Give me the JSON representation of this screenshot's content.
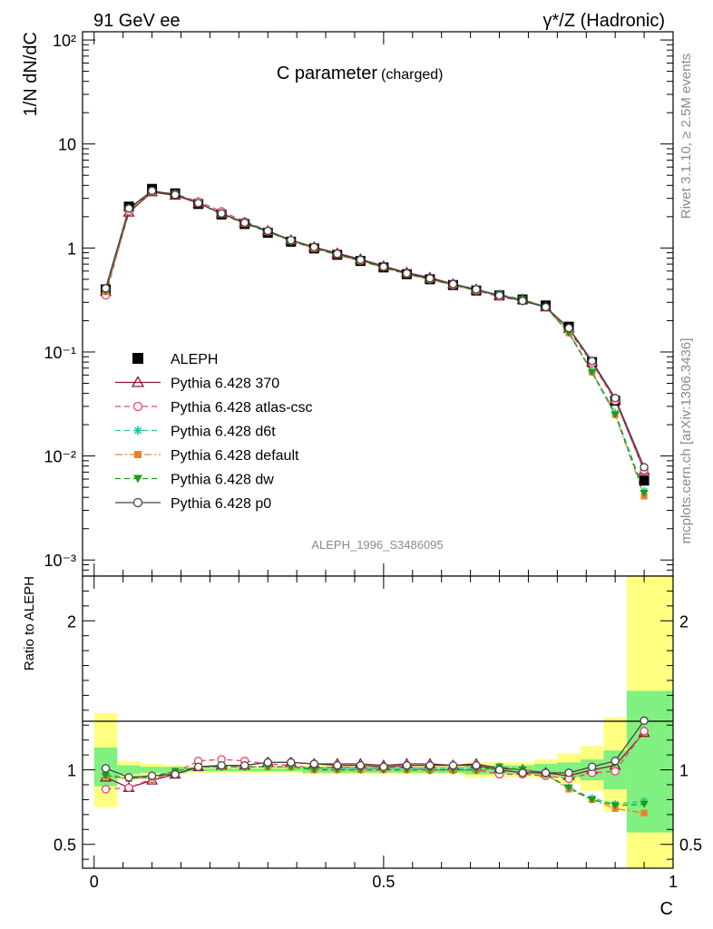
{
  "header": {
    "left": "91 GeV ee",
    "right": "γ*/Z (Hadronic)"
  },
  "side_text": {
    "top": "Rivet 3.1.10, ≥ 2.5M events",
    "bottom": "mcplots.cern.ch [arXiv:1306.3436]"
  },
  "chart_data": [
    {
      "type": "line",
      "panel": "main",
      "title": "C parameter",
      "title_suffix": "(charged)",
      "ylabel": "1/N dN/dC",
      "yscale": "log",
      "ylim": [
        0.0007,
        120
      ],
      "xlim": [
        -0.02,
        1.0
      ],
      "ytick_labels": [
        "10⁻³",
        "10⁻²",
        "10⁻¹",
        "1",
        "10",
        "10²"
      ],
      "watermark": "ALEPH_1996_S3486095",
      "legend_position": "center-left",
      "x": [
        0.02,
        0.06,
        0.1,
        0.14,
        0.18,
        0.22,
        0.26,
        0.3,
        0.34,
        0.38,
        0.42,
        0.46,
        0.5,
        0.54,
        0.58,
        0.62,
        0.66,
        0.7,
        0.74,
        0.78,
        0.82,
        0.86,
        0.9,
        0.95
      ],
      "series": [
        {
          "name": "ALEPH",
          "color": "#000000",
          "marker": "square",
          "dash": "none",
          "values": [
            0.4,
            2.5,
            3.7,
            3.35,
            2.65,
            2.1,
            1.7,
            1.4,
            1.15,
            0.99,
            0.86,
            0.75,
            0.65,
            0.56,
            0.5,
            0.44,
            0.39,
            0.35,
            0.32,
            0.28,
            0.175,
            0.08,
            0.034,
            0.0058
          ]
        },
        {
          "name": "Pythia 6.428 370",
          "color": "#8b1a2b",
          "marker": "triangle-open",
          "dash": "solid",
          "values": [
            0.38,
            2.2,
            3.45,
            3.2,
            2.7,
            2.15,
            1.75,
            1.46,
            1.19,
            1.02,
            0.89,
            0.78,
            0.67,
            0.58,
            0.52,
            0.45,
            0.4,
            0.35,
            0.32,
            0.27,
            0.168,
            0.08,
            0.035,
            0.0072
          ]
        },
        {
          "name": "Pythia 6.428 atlas-csc",
          "color": "#e8456a",
          "marker": "circle-open",
          "dash": "dashed",
          "values": [
            0.35,
            2.25,
            3.5,
            3.3,
            2.8,
            2.25,
            1.8,
            1.47,
            1.18,
            1.0,
            0.88,
            0.76,
            0.66,
            0.57,
            0.5,
            0.44,
            0.39,
            0.34,
            0.31,
            0.27,
            0.16,
            0.078,
            0.034,
            0.0073
          ]
        },
        {
          "name": "Pythia 6.428 d6t",
          "color": "#1ec8a0",
          "marker": "asterisk",
          "dash": "dashed",
          "values": [
            0.39,
            2.4,
            3.55,
            3.3,
            2.7,
            2.12,
            1.72,
            1.43,
            1.17,
            1.0,
            0.87,
            0.76,
            0.66,
            0.57,
            0.5,
            0.44,
            0.39,
            0.36,
            0.32,
            0.27,
            0.155,
            0.065,
            0.026,
            0.0046
          ]
        },
        {
          "name": "Pythia 6.428 default",
          "color": "#f07f2a",
          "marker": "square-filled",
          "dash": "dashdot",
          "values": [
            0.38,
            2.35,
            3.5,
            3.3,
            2.7,
            2.12,
            1.72,
            1.43,
            1.17,
            0.99,
            0.86,
            0.75,
            0.65,
            0.56,
            0.5,
            0.44,
            0.39,
            0.35,
            0.32,
            0.27,
            0.152,
            0.064,
            0.025,
            0.0041
          ]
        },
        {
          "name": "Pythia 6.428 dw",
          "color": "#1a9e1a",
          "marker": "triangle-down-filled",
          "dash": "dashed",
          "values": [
            0.38,
            2.35,
            3.5,
            3.3,
            2.7,
            2.12,
            1.72,
            1.43,
            1.17,
            0.99,
            0.86,
            0.75,
            0.65,
            0.56,
            0.5,
            0.44,
            0.39,
            0.35,
            0.32,
            0.27,
            0.152,
            0.064,
            0.025,
            0.0044
          ]
        },
        {
          "name": "Pythia 6.428 p0",
          "color": "#444444",
          "marker": "circle-open",
          "dash": "solid",
          "values": [
            0.41,
            2.4,
            3.55,
            3.25,
            2.7,
            2.15,
            1.75,
            1.46,
            1.19,
            1.02,
            0.88,
            0.77,
            0.66,
            0.57,
            0.51,
            0.45,
            0.4,
            0.35,
            0.31,
            0.27,
            0.17,
            0.082,
            0.036,
            0.0078
          ]
        }
      ]
    },
    {
      "type": "line",
      "panel": "ratio",
      "ylabel": "Ratio to ALEPH",
      "xlabel": "C",
      "ylim": [
        0.34,
        2.3
      ],
      "xlim": [
        -0.02,
        1.0
      ],
      "xtick_labels": [
        "0",
        "0.5",
        "1"
      ],
      "ytick_labels": [
        "0.5",
        "1",
        "2"
      ],
      "x": [
        0.02,
        0.06,
        0.1,
        0.14,
        0.18,
        0.22,
        0.26,
        0.3,
        0.34,
        0.38,
        0.42,
        0.46,
        0.5,
        0.54,
        0.58,
        0.62,
        0.66,
        0.7,
        0.74,
        0.78,
        0.82,
        0.86,
        0.9,
        0.95
      ],
      "bins": [
        0.0,
        0.04,
        0.08,
        0.12,
        0.16,
        0.2,
        0.24,
        0.28,
        0.32,
        0.36,
        0.4,
        0.44,
        0.48,
        0.52,
        0.56,
        0.6,
        0.64,
        0.68,
        0.72,
        0.76,
        0.8,
        0.84,
        0.88,
        0.92,
        1.0
      ],
      "band_inner": [
        [
          0.89,
          1.15
        ],
        [
          0.97,
          1.03
        ],
        [
          0.98,
          1.02
        ],
        [
          0.98,
          1.02
        ],
        [
          0.99,
          1.01
        ],
        [
          0.99,
          1.01
        ],
        [
          0.99,
          1.01
        ],
        [
          0.99,
          1.01
        ],
        [
          0.99,
          1.01
        ],
        [
          0.98,
          1.02
        ],
        [
          0.98,
          1.02
        ],
        [
          0.98,
          1.02
        ],
        [
          0.98,
          1.02
        ],
        [
          0.98,
          1.02
        ],
        [
          0.98,
          1.02
        ],
        [
          0.98,
          1.02
        ],
        [
          0.97,
          1.03
        ],
        [
          0.97,
          1.03
        ],
        [
          0.97,
          1.03
        ],
        [
          0.96,
          1.04
        ],
        [
          0.95,
          1.05
        ],
        [
          0.93,
          1.07
        ],
        [
          0.87,
          1.13
        ],
        [
          0.58,
          1.53
        ]
      ],
      "band_outer": [
        [
          0.75,
          1.38
        ],
        [
          0.94,
          1.06
        ],
        [
          0.96,
          1.04
        ],
        [
          0.97,
          1.03
        ],
        [
          0.98,
          1.02
        ],
        [
          0.98,
          1.02
        ],
        [
          0.98,
          1.02
        ],
        [
          0.98,
          1.02
        ],
        [
          0.98,
          1.02
        ],
        [
          0.97,
          1.03
        ],
        [
          0.97,
          1.03
        ],
        [
          0.97,
          1.03
        ],
        [
          0.97,
          1.03
        ],
        [
          0.97,
          1.03
        ],
        [
          0.97,
          1.03
        ],
        [
          0.97,
          1.03
        ],
        [
          0.95,
          1.05
        ],
        [
          0.95,
          1.05
        ],
        [
          0.95,
          1.05
        ],
        [
          0.94,
          1.07
        ],
        [
          0.91,
          1.11
        ],
        [
          0.86,
          1.16
        ],
        [
          0.72,
          1.35
        ],
        [
          0.34,
          2.3
        ]
      ],
      "series": [
        {
          "name": "Pythia 6.428 370",
          "color": "#8b1a2b",
          "marker": "triangle-open",
          "dash": "solid",
          "values": [
            0.95,
            0.88,
            0.93,
            0.97,
            1.02,
            1.03,
            1.03,
            1.05,
            1.05,
            1.04,
            1.04,
            1.04,
            1.03,
            1.04,
            1.04,
            1.03,
            1.04,
            1.01,
            1.0,
            0.98,
            0.96,
            1.0,
            1.03,
            1.25
          ]
        },
        {
          "name": "Pythia 6.428 atlas-csc",
          "color": "#e8456a",
          "marker": "circle-open",
          "dash": "dashed",
          "values": [
            0.87,
            0.88,
            0.94,
            0.98,
            1.06,
            1.07,
            1.06,
            1.04,
            1.03,
            1.01,
            1.02,
            1.01,
            1.01,
            1.02,
            1.0,
            1.0,
            1.0,
            0.97,
            0.97,
            0.96,
            0.94,
            0.98,
            0.99,
            1.26
          ]
        },
        {
          "name": "Pythia 6.428 d6t",
          "color": "#1ec8a0",
          "marker": "asterisk",
          "dash": "dashed",
          "values": [
            0.97,
            0.95,
            0.96,
            0.99,
            1.02,
            1.02,
            1.02,
            1.02,
            1.02,
            1.01,
            1.01,
            1.01,
            1.01,
            1.01,
            1.01,
            1.01,
            1.01,
            1.02,
            1.0,
            0.97,
            0.88,
            0.81,
            0.77,
            0.79
          ]
        },
        {
          "name": "Pythia 6.428 default",
          "color": "#f07f2a",
          "marker": "square-filled",
          "dash": "dashdot",
          "values": [
            0.96,
            0.94,
            0.95,
            0.99,
            1.02,
            1.02,
            1.02,
            1.02,
            1.02,
            1.0,
            1.0,
            1.0,
            1.0,
            1.0,
            1.0,
            1.0,
            1.0,
            1.0,
            1.0,
            0.97,
            0.87,
            0.8,
            0.74,
            0.71
          ]
        },
        {
          "name": "Pythia 6.428 dw",
          "color": "#1a9e1a",
          "marker": "triangle-down-filled",
          "dash": "dashed",
          "values": [
            0.96,
            0.94,
            0.95,
            0.99,
            1.02,
            1.02,
            1.02,
            1.02,
            1.02,
            1.0,
            1.0,
            1.0,
            1.0,
            1.0,
            1.0,
            1.0,
            1.0,
            1.02,
            1.0,
            0.97,
            0.88,
            0.8,
            0.76,
            0.77
          ]
        },
        {
          "name": "Pythia 6.428 p0",
          "color": "#444444",
          "marker": "circle-open",
          "dash": "solid",
          "values": [
            1.01,
            0.95,
            0.96,
            0.97,
            1.02,
            1.03,
            1.03,
            1.05,
            1.05,
            1.04,
            1.03,
            1.03,
            1.02,
            1.03,
            1.03,
            1.03,
            1.03,
            1.0,
            0.98,
            0.98,
            0.98,
            1.02,
            1.06,
            1.33
          ]
        }
      ]
    }
  ]
}
